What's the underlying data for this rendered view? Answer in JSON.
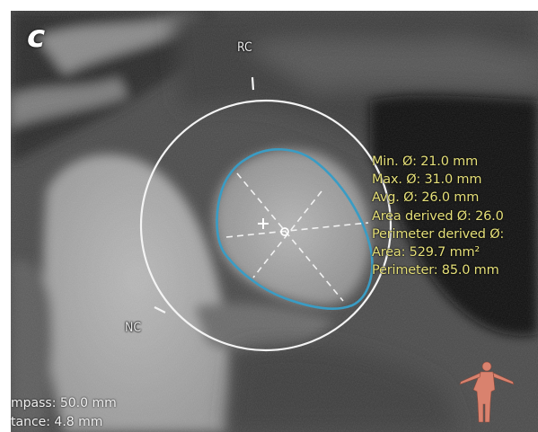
{
  "panel": {
    "letter": "c"
  },
  "annotations": {
    "cusp_right": "RC",
    "cusp_non": "NC"
  },
  "measurements": [
    "Min. Ø: 21.0 mm",
    "Max. Ø: 31.0 mm",
    "Avg. Ø: 26.0 mm",
    "Area derived Ø: 26.0",
    "Perimeter derived Ø:",
    "Area: 529.7 mm²",
    "Perimeter: 85.0 mm"
  ],
  "readout": {
    "compass_line": "mpass: 50.0 mm",
    "distance_line": "tance: 4.8 mm"
  },
  "colors": {
    "annulus_contour": "#3a9cc4",
    "compass_circle": "#f4f4f4",
    "measurement_text": "#e6e07a",
    "orientation_figure": "#d9826e"
  },
  "icons": {
    "orientation_figure": "human-body-orientation-icon",
    "centroid_marker": "crosshair-icon"
  }
}
